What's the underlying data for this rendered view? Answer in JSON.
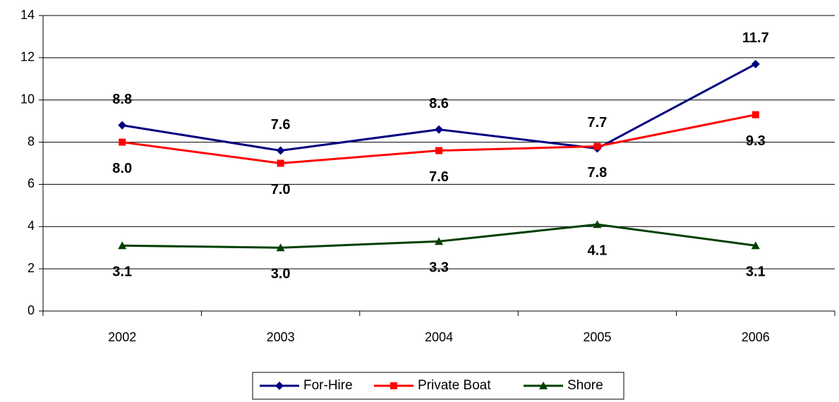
{
  "chart_data": {
    "type": "line",
    "categories": [
      "2002",
      "2003",
      "2004",
      "2005",
      "2006"
    ],
    "series": [
      {
        "name": "For-Hire",
        "color": "#000080",
        "marker": "diamond",
        "label_position": "above",
        "values": [
          8.8,
          7.6,
          8.6,
          7.7,
          11.7
        ],
        "value_labels": [
          "8.8",
          "7.6",
          "8.6",
          "7.7",
          "11.7"
        ]
      },
      {
        "name": "Private Boat",
        "color": "#ff0000",
        "marker": "square",
        "label_position": "below",
        "values": [
          8.0,
          7.0,
          7.6,
          7.8,
          9.3
        ],
        "value_labels": [
          "8.0",
          "7.0",
          "7.6",
          "7.8",
          "9.3"
        ]
      },
      {
        "name": "Shore",
        "color": "#004000",
        "marker": "triangle",
        "label_position": "below",
        "values": [
          3.1,
          3.0,
          3.3,
          4.1,
          3.1
        ],
        "value_labels": [
          "3.1",
          "3.0",
          "3.3",
          "4.1",
          "3.1"
        ]
      }
    ],
    "ylim": [
      0,
      14
    ],
    "yticks": [
      0,
      2,
      4,
      6,
      8,
      10,
      12,
      14
    ],
    "grid": true,
    "legend": "bottom"
  }
}
